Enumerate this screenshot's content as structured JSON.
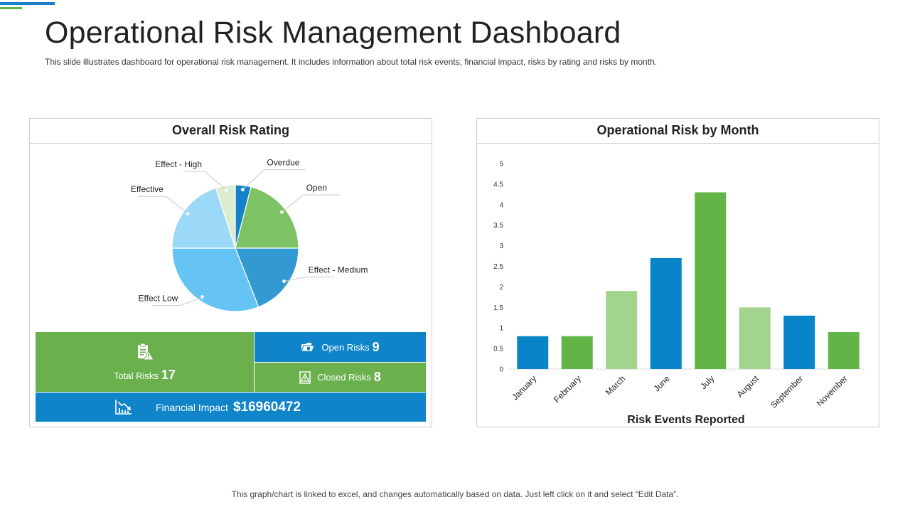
{
  "header": {
    "title": "Operational Risk Management Dashboard",
    "subtitle": "This slide illustrates dashboard for operational risk management. It includes information about total risk events, financial impact, risks by rating and risks by month."
  },
  "colors": {
    "accent_blue": "#1c7ec9",
    "accent_green": "#6ab04c",
    "tile_blue": "#0f84c8",
    "tile_green": "#6ab04c"
  },
  "rating_panel": {
    "title": "Overall Risk Rating",
    "chart_data": {
      "type": "pie",
      "slices": [
        {
          "label": "Overdue",
          "value": 4,
          "color": "#1481c9"
        },
        {
          "label": "Open",
          "value": 21,
          "color": "#7dc264"
        },
        {
          "label": "Effect - Medium",
          "value": 19,
          "color": "#3399d3"
        },
        {
          "label": "Effect Low",
          "value": 31,
          "color": "#66c4f5"
        },
        {
          "label": "Effective",
          "value": 20,
          "color": "#9cd8f8"
        },
        {
          "label": "Effect - High",
          "value": 5,
          "color": "#dceccf"
        }
      ]
    },
    "tiles": {
      "total_label": "Total Risks",
      "total_value": "17",
      "open_label": "Open Risks",
      "open_value": "9",
      "closed_label": "Closed Risks",
      "closed_value": "8",
      "financial_label": "Financial Impact",
      "financial_value": "$16960472"
    },
    "icons": {
      "total": "clipboard-warning-icon",
      "open": "folder-icon",
      "closed": "warning-icon",
      "financial": "declining-chart-icon"
    }
  },
  "month_panel": {
    "title": "Operational Risk by Month",
    "chart_data": {
      "type": "bar",
      "categories": [
        "January",
        "February",
        "March",
        "June",
        "July",
        "August",
        "September",
        "November"
      ],
      "values": [
        0.8,
        0.8,
        1.9,
        2.7,
        4.3,
        1.5,
        1.3,
        0.9
      ],
      "colors": [
        "#0a84c8",
        "#63b446",
        "#a3d48d",
        "#0a84c8",
        "#63b446",
        "#a3d48d",
        "#0a84c8",
        "#63b446"
      ],
      "yticks": [
        "0",
        "0.5",
        "1",
        "1.5",
        "2",
        "2.5",
        "3",
        "3.5",
        "4",
        "4.5",
        "5"
      ],
      "ylim": [
        0,
        5
      ],
      "xlabel": "Risk  Events Reported",
      "ylabel": ""
    }
  },
  "footer": {
    "note": "This graph/chart is linked to excel, and changes automatically based on data. Just left click on it and select “Edit Data”."
  }
}
